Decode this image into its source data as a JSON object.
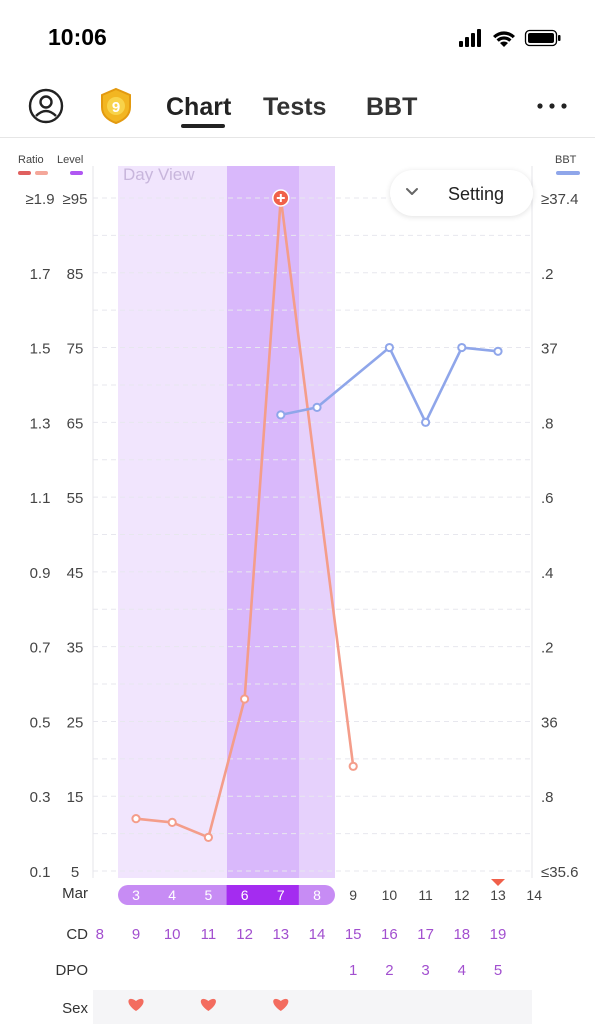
{
  "status_bar": {
    "time": "10:06"
  },
  "nav": {
    "badge_number": "9",
    "tabs": [
      {
        "label": "Chart",
        "active": true
      },
      {
        "label": "Tests",
        "active": false
      },
      {
        "label": "BBT",
        "active": false
      }
    ],
    "more_icon": "ellipsis-icon",
    "profile_icon": "profile-icon"
  },
  "legend": {
    "ratio_label": "Ratio",
    "level_label": "Level",
    "bbt_label": "BBT",
    "colors": {
      "ratio_dark": "#e0605f",
      "ratio_light": "#f4a79a",
      "level": "#b057f2",
      "bbt": "#8fa6ea",
      "lh_line": "#f49d8a"
    }
  },
  "chart_overlay": {
    "view_label": "Day View",
    "setting_label": "Setting"
  },
  "axes": {
    "ratio_ticks": [
      "≥1.9",
      "1.7",
      "1.5",
      "1.3",
      "1.1",
      "0.9",
      "0.7",
      "0.5",
      "0.3",
      "0.1"
    ],
    "level_ticks": [
      "≥95",
      "85",
      "75",
      "65",
      "55",
      "45",
      "35",
      "25",
      "15",
      "5"
    ],
    "bbt_ticks": [
      "≥37.4",
      ".2",
      "37",
      ".8",
      ".6",
      ".4",
      ".2",
      "36",
      ".8",
      "≤35.6"
    ]
  },
  "rows": {
    "month_label": "Mar",
    "dates": [
      "3",
      "4",
      "5",
      "6",
      "7",
      "8",
      "9",
      "10",
      "11",
      "12",
      "13",
      "14"
    ],
    "cd_label": "CD",
    "cd": [
      "8",
      "9",
      "10",
      "11",
      "12",
      "13",
      "14",
      "15",
      "16",
      "17",
      "18",
      "19"
    ],
    "dpo_label": "DPO",
    "dpo": [
      "",
      "",
      "",
      "",
      "",
      "",
      "",
      "1",
      "2",
      "3",
      "4",
      "5"
    ],
    "sex_label": "Sex",
    "sex": [
      false,
      true,
      false,
      true,
      false,
      true,
      false,
      false,
      false,
      false,
      false,
      false
    ]
  },
  "chart_data": {
    "type": "line",
    "x": [
      "Mar 3",
      "Mar 4",
      "Mar 5",
      "Mar 6",
      "Mar 7",
      "Mar 8",
      "Mar 9",
      "Mar 10",
      "Mar 11",
      "Mar 12",
      "Mar 13"
    ],
    "series": [
      {
        "axis": "level",
        "values": [
          12,
          11.5,
          9.5,
          28,
          95,
          null,
          19,
          null,
          null,
          null,
          null
        ]
      },
      {
        "axis": "bbt",
        "values": [
          null,
          null,
          null,
          null,
          36.82,
          36.84,
          null,
          37.0,
          36.8,
          37.0,
          36.99
        ]
      }
    ],
    "ylim_level": [
      5,
      95
    ],
    "ylim_ratio": [
      0.1,
      1.9
    ],
    "ylim_bbt": [
      35.6,
      37.4
    ],
    "peak_day": "Mar 7",
    "fertile_window": [
      "Mar 3",
      "Mar 8"
    ],
    "high_days": [
      "Mar 6",
      "Mar 7"
    ]
  }
}
